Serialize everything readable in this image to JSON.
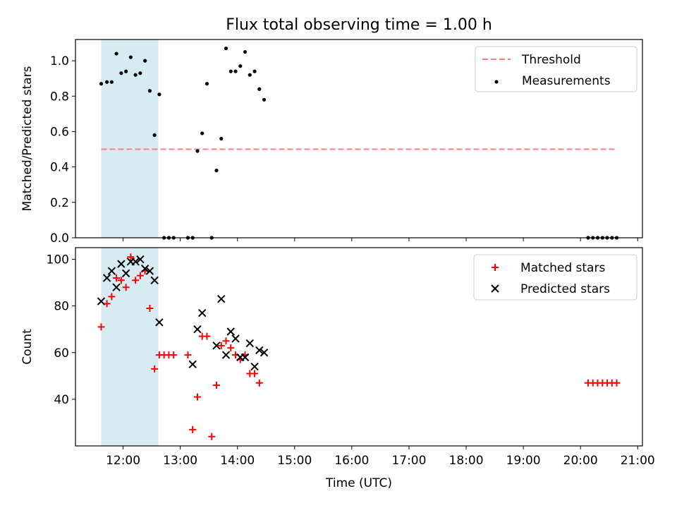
{
  "title": "Flux total observing time = 1.00 h",
  "colors": {
    "threshold": "#ff7f7f",
    "measurement": "#000000",
    "matched": "#ff0000",
    "predicted": "#000000",
    "shade": "#add8e6"
  },
  "chart_data": [
    {
      "type": "scatter",
      "panel": "top",
      "ylabel": "Matched/Predicted stars",
      "ylim": [
        0,
        1.12
      ],
      "yticks": [
        0.0,
        0.2,
        0.4,
        0.6,
        0.8,
        1.0
      ],
      "ytick_labels": [
        "0.0",
        "0.2",
        "0.4",
        "0.6",
        "0.8",
        "1.0"
      ],
      "xlim": [
        "11:10",
        "21:05"
      ],
      "shaded_span": [
        "11:37",
        "12:37"
      ],
      "threshold": {
        "name": "Threshold",
        "y": 0.5,
        "x_range": [
          "11:37",
          "20:38"
        ],
        "style": "dashed"
      },
      "legend": {
        "position": "top-right",
        "entries": [
          "Threshold",
          "Measurements"
        ]
      },
      "series": [
        {
          "name": "Measurements",
          "marker": "dot",
          "points": [
            [
              "11:37",
              0.87
            ],
            [
              "11:43",
              0.88
            ],
            [
              "11:48",
              0.88
            ],
            [
              "11:53",
              1.04
            ],
            [
              "11:58",
              0.93
            ],
            [
              "12:03",
              0.94
            ],
            [
              "12:08",
              1.02
            ],
            [
              "12:13",
              0.92
            ],
            [
              "12:18",
              0.93
            ],
            [
              "12:23",
              1.0
            ],
            [
              "12:28",
              0.83
            ],
            [
              "12:33",
              0.58
            ],
            [
              "12:38",
              0.81
            ],
            [
              "12:43",
              0.0
            ],
            [
              "12:48",
              0.0
            ],
            [
              "12:53",
              0.0
            ],
            [
              "13:08",
              0.0
            ],
            [
              "13:13",
              0.0
            ],
            [
              "13:18",
              0.49
            ],
            [
              "13:23",
              0.59
            ],
            [
              "13:28",
              0.87
            ],
            [
              "13:33",
              0.0
            ],
            [
              "13:38",
              0.38
            ],
            [
              "13:43",
              0.56
            ],
            [
              "13:48",
              1.07
            ],
            [
              "13:53",
              0.94
            ],
            [
              "13:58",
              0.94
            ],
            [
              "14:03",
              0.97
            ],
            [
              "14:08",
              1.05
            ],
            [
              "14:13",
              0.92
            ],
            [
              "14:18",
              0.94
            ],
            [
              "14:23",
              0.84
            ],
            [
              "14:28",
              0.78
            ],
            [
              "20:08",
              0.0
            ],
            [
              "20:13",
              0.0
            ],
            [
              "20:18",
              0.0
            ],
            [
              "20:23",
              0.0
            ],
            [
              "20:28",
              0.0
            ],
            [
              "20:33",
              0.0
            ],
            [
              "20:38",
              0.0
            ]
          ]
        }
      ]
    },
    {
      "type": "scatter",
      "panel": "bottom",
      "xlabel": "Time (UTC)",
      "ylabel": "Count",
      "ylim": [
        20,
        105
      ],
      "yticks": [
        40,
        60,
        80,
        100
      ],
      "xticks": [
        "12:00",
        "13:00",
        "14:00",
        "15:00",
        "16:00",
        "17:00",
        "18:00",
        "19:00",
        "20:00",
        "21:00"
      ],
      "xlim": [
        "11:10",
        "21:05"
      ],
      "shaded_span": [
        "11:37",
        "12:37"
      ],
      "legend": {
        "position": "top-right",
        "entries": [
          "Matched stars",
          "Predicted stars"
        ]
      },
      "series": [
        {
          "name": "Matched stars",
          "marker": "plus",
          "points": [
            [
              "11:37",
              71
            ],
            [
              "11:43",
              81
            ],
            [
              "11:48",
              84
            ],
            [
              "11:53",
              92
            ],
            [
              "11:58",
              91
            ],
            [
              "12:03",
              88
            ],
            [
              "12:08",
              101
            ],
            [
              "12:13",
              91
            ],
            [
              "12:18",
              93
            ],
            [
              "12:23",
              95
            ],
            [
              "12:28",
              79
            ],
            [
              "12:33",
              53
            ],
            [
              "12:38",
              59
            ],
            [
              "12:43",
              59
            ],
            [
              "12:48",
              59
            ],
            [
              "12:53",
              59
            ],
            [
              "13:08",
              59
            ],
            [
              "13:13",
              27
            ],
            [
              "13:18",
              41
            ],
            [
              "13:23",
              67
            ],
            [
              "13:28",
              67
            ],
            [
              "13:33",
              24
            ],
            [
              "13:38",
              46
            ],
            [
              "13:43",
              63
            ],
            [
              "13:48",
              65
            ],
            [
              "13:53",
              62
            ],
            [
              "13:58",
              59
            ],
            [
              "14:03",
              57
            ],
            [
              "14:08",
              59
            ],
            [
              "14:13",
              51
            ],
            [
              "14:18",
              51
            ],
            [
              "14:23",
              47
            ],
            [
              "20:08",
              47
            ],
            [
              "20:13",
              47
            ],
            [
              "20:18",
              47
            ],
            [
              "20:23",
              47
            ],
            [
              "20:28",
              47
            ],
            [
              "20:33",
              47
            ],
            [
              "20:38",
              47
            ]
          ]
        },
        {
          "name": "Predicted stars",
          "marker": "x",
          "points": [
            [
              "11:37",
              82
            ],
            [
              "11:43",
              92
            ],
            [
              "11:48",
              95
            ],
            [
              "11:53",
              88
            ],
            [
              "11:58",
              98
            ],
            [
              "12:03",
              94
            ],
            [
              "12:08",
              99
            ],
            [
              "12:13",
              99
            ],
            [
              "12:18",
              100
            ],
            [
              "12:23",
              96
            ],
            [
              "12:28",
              95
            ],
            [
              "12:33",
              91
            ],
            [
              "12:38",
              73
            ],
            [
              "13:13",
              55
            ],
            [
              "13:18",
              70
            ],
            [
              "13:23",
              77
            ],
            [
              "13:38",
              63
            ],
            [
              "13:43",
              83
            ],
            [
              "13:48",
              59
            ],
            [
              "13:53",
              69
            ],
            [
              "13:58",
              66
            ],
            [
              "14:03",
              58
            ],
            [
              "14:08",
              58
            ],
            [
              "14:13",
              64
            ],
            [
              "14:18",
              54
            ],
            [
              "14:23",
              61
            ],
            [
              "14:28",
              60
            ]
          ]
        }
      ]
    }
  ]
}
